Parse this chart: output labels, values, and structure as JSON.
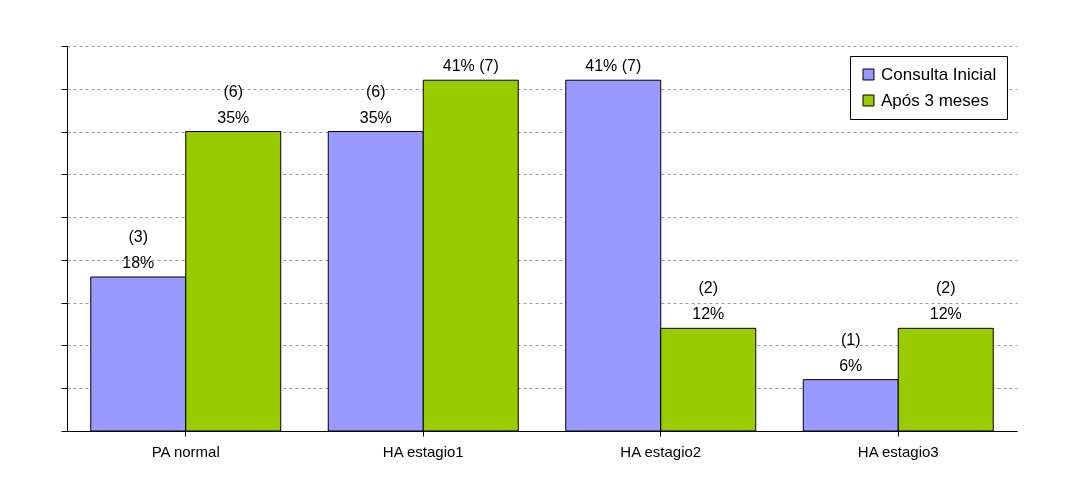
{
  "chart_data": {
    "type": "bar",
    "categories": [
      "PA normal",
      "HA estagio1",
      "HA estagio2",
      "HA estagio3"
    ],
    "series": [
      {
        "name": "Consulta Inicial",
        "color": "#9999ff",
        "values": [
          18,
          35,
          41,
          6
        ],
        "value_labels": [
          "(3)\n18%",
          "(6)\n35%",
          "41% (7)",
          "(1)\n6%"
        ]
      },
      {
        "name": "Após 3 meses",
        "color": "#99cc00",
        "values": [
          35,
          41,
          12,
          12
        ],
        "value_labels": [
          "(6)\n35%",
          "41% (7)",
          "(2)\n12%",
          "(2)\n12%"
        ]
      }
    ],
    "ylim": [
      0,
      45
    ],
    "yticks": [
      {
        "value": 0,
        "label": null
      },
      {
        "value": 5,
        "label": null
      },
      {
        "value": 10,
        "label": null
      },
      {
        "value": 15,
        "label": null
      },
      {
        "value": 20,
        "label": null
      },
      {
        "value": 25,
        "label": null
      },
      {
        "value": 30,
        "label": null
      },
      {
        "value": 35,
        "label": null
      },
      {
        "value": 40,
        "label": null
      },
      {
        "value": 45,
        "label": null
      }
    ],
    "grid": "y",
    "legend": "top right",
    "tick_labels": "x"
  }
}
